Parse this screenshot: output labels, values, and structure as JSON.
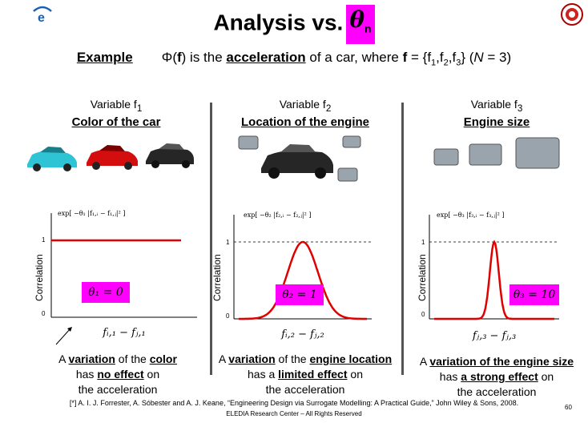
{
  "title": {
    "main": "Analysis vs.",
    "symbol": "θ",
    "subscript": "n"
  },
  "colors": {
    "accent": "#ff00ff",
    "curve": "#e00000",
    "divider": "#555555"
  },
  "example": {
    "label": "Example",
    "pre": "Φ(",
    "f_bold": "f",
    "mid": ") is the ",
    "keyword": "acceleration",
    "post": " of a car, where ",
    "f2_bold": "f",
    "set": " = {f",
    "s1": "1",
    "c1": ",f",
    "s2": "2",
    "c2": ",f",
    "s3": "3",
    "tail": "} (",
    "N": "N",
    "eq": " = 3)"
  },
  "columns": [
    {
      "var_label": "Variable f",
      "var_sub": "1",
      "name": "Color of the car",
      "formula": "exp[ −θ₁ |f₁,ᵢ − f₁,ⱼ|² ]",
      "ylabel": "Correlation",
      "tick_1": "1",
      "tick_0": "0",
      "theta_label": "θ₁ = 0",
      "theta": 0,
      "xlabel": "fᵢ,₁ − fⱼ,₁",
      "cap_pre": "A ",
      "cap_b1": "variation",
      "cap_mid": " of the ",
      "cap_b2": "color",
      "cap_l2_pre": "has ",
      "cap_l2_b": "no effect",
      "cap_l2_post": " on",
      "cap_l3": "the acceleration"
    },
    {
      "var_label": "Variable f",
      "var_sub": "2",
      "name": "Location of the engine",
      "formula": "exp[ −θ₂ |f₂,ᵢ − f₂,ⱼ|² ]",
      "ylabel": "Correlation",
      "tick_1": "1",
      "tick_0": "0",
      "theta_label": "θ₂ = 1",
      "theta": 1,
      "xlabel": "fᵢ,₂ − fⱼ,₂",
      "cap_pre": "A ",
      "cap_b1": "variation",
      "cap_mid": " of the ",
      "cap_b2": "engine location",
      "cap_l2_pre": "has a ",
      "cap_l2_b": "limited effect",
      "cap_l2_post": " on",
      "cap_l3": "the acceleration"
    },
    {
      "var_label": "Variable f",
      "var_sub": "3",
      "name": "Engine size",
      "formula": "exp[ −θ₃ |f₃,ᵢ − f₃,ⱼ|² ]",
      "ylabel": "Correlation",
      "tick_1": "1",
      "tick_0": "0",
      "theta_label": "θ₃ = 10",
      "theta": 10,
      "xlabel": "fⱼ,₃ − fⱼ,₃",
      "cap_pre": "A ",
      "cap_b1": "variation of the engine size",
      "cap_mid": "",
      "cap_b2": "",
      "cap_l2_pre": "has ",
      "cap_l2_b": "a strong effect",
      "cap_l2_post": " on",
      "cap_l3": "the acceleration"
    }
  ],
  "footnote": "[*] A. I. J. Forrester, A. Sóbester and A. J. Keane, “Engineering Design via Surrogate Modelling: A Practical Guide,” John Wiley & Sons, 2008.",
  "footer": "ELEDIA Research Center – All Rights Reserved",
  "page_number": "60"
}
